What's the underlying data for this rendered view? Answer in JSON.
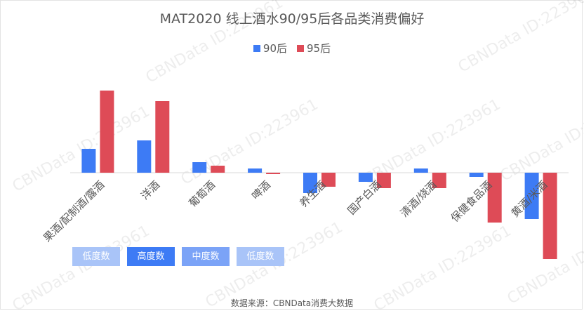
{
  "chart_data": {
    "type": "bar",
    "title": "MAT2020 线上酒水90/95后各品类消费偏好",
    "categories": [
      "果酒/配制酒/露酒",
      "洋酒",
      "葡萄酒",
      "啤酒",
      "养生酒",
      "国产白酒",
      "清酒/烧酒",
      "保健食品酒",
      "黄酒/米酒"
    ],
    "series": [
      {
        "name": "90后",
        "color": "#3d7bf5",
        "values": [
          34,
          46,
          15,
          6,
          -29,
          -13,
          6,
          -6,
          -66
        ]
      },
      {
        "name": "95后",
        "color": "#de4b57",
        "values": [
          117,
          102,
          10,
          -2,
          -20,
          -22,
          -22,
          -71,
          -123
        ]
      }
    ],
    "ylim": [
      -130,
      125
    ],
    "grid": false,
    "legend_position": "top-center",
    "xlabel": "",
    "ylabel": ""
  },
  "tags": [
    {
      "label": "低度数",
      "color": "#a9c4f8"
    },
    {
      "label": "高度数",
      "color": "#3d7bf5"
    },
    {
      "label": "中度数",
      "color": "#7ba3f7"
    },
    {
      "label": "低度数",
      "color": "#a9c4f8"
    }
  ],
  "source": "数据来源：CBNData消费大数据",
  "watermark": "CBNData ID:223961"
}
